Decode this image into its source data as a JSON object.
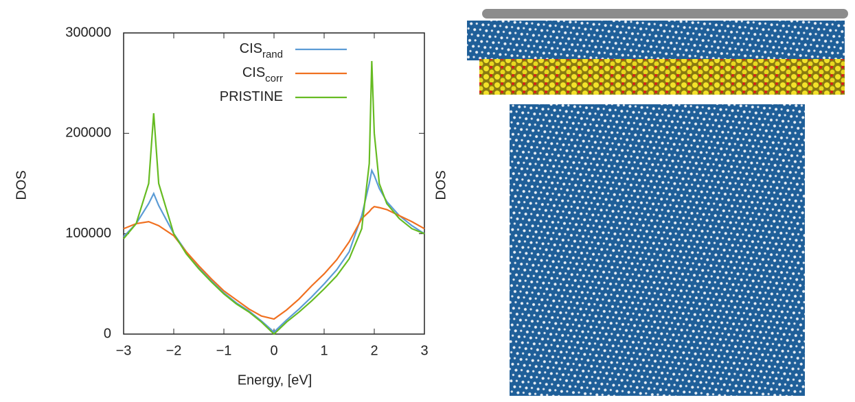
{
  "chart_data": {
    "type": "line",
    "x_label": "Energy, [eV]",
    "y_label": "DOS",
    "x": [
      -3,
      -2.75,
      -2.5,
      -2.4,
      -2.3,
      -2,
      -1.75,
      -1.5,
      -1.25,
      -1,
      -0.75,
      -0.5,
      -0.25,
      0,
      0.25,
      0.5,
      0.75,
      1,
      1.25,
      1.5,
      1.75,
      1.9,
      1.95,
      2,
      2.1,
      2.25,
      2.5,
      2.75,
      3
    ],
    "series": [
      {
        "name": "CIS",
        "name_subscript": "rand",
        "color": "#5b9bd5",
        "values": [
          97000,
          110000,
          130000,
          140000,
          128000,
          100000,
          82000,
          66000,
          53000,
          41000,
          31000,
          23000,
          13000,
          2000,
          14000,
          25000,
          37000,
          50000,
          64000,
          82000,
          118000,
          150000,
          163000,
          158000,
          145000,
          132000,
          118000,
          108000,
          100000
        ]
      },
      {
        "name": "CIS",
        "name_subscript": "corr",
        "color": "#f07020",
        "values": [
          105000,
          110000,
          112000,
          110000,
          108000,
          98000,
          82000,
          68000,
          55000,
          43000,
          34000,
          25000,
          18000,
          15000,
          24000,
          35000,
          48000,
          60000,
          74000,
          92000,
          115000,
          122000,
          125000,
          127000,
          126000,
          124000,
          118000,
          112000,
          105000
        ]
      },
      {
        "name": "PRISTINE",
        "color": "#66bb22",
        "values": [
          95000,
          110000,
          150000,
          220000,
          150000,
          100000,
          80000,
          65000,
          52000,
          40000,
          30000,
          22000,
          12000,
          0,
          12000,
          22000,
          33000,
          45000,
          58000,
          75000,
          105000,
          170000,
          272000,
          200000,
          150000,
          130000,
          115000,
          105000,
          100000
        ]
      }
    ],
    "xlim": [
      -3,
      3
    ],
    "ylim": [
      0,
      300000
    ],
    "xticks": [
      {
        "value": -3,
        "label": "−3"
      },
      {
        "value": -2,
        "label": "−2"
      },
      {
        "value": -1,
        "label": "−1"
      },
      0,
      1,
      2,
      3
    ],
    "yticks": [
      0,
      100000,
      200000,
      300000
    ],
    "legend": "upper-right"
  },
  "right_panel": {
    "y_label": "DOS"
  }
}
